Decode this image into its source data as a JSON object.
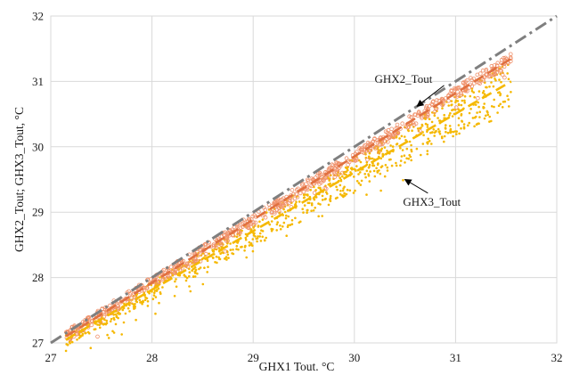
{
  "chart_data": {
    "type": "scatter",
    "xlabel": "GHX1  Tout. °C",
    "ylabel": "GHX2_Tout; GHX3_Tout, °C",
    "xlim": [
      27,
      32
    ],
    "ylim": [
      27,
      32
    ],
    "xticks": [
      "27",
      "28",
      "29",
      "30",
      "31",
      "32"
    ],
    "yticks": [
      "27",
      "28",
      "29",
      "30",
      "31",
      "32"
    ],
    "grid": true,
    "colors": {
      "ghx2": "#f0916b",
      "ghx3": "#f5b800",
      "reference": "#7f7f7f",
      "grid": "#d9d9d9"
    },
    "reference_line": {
      "x": [
        27,
        32
      ],
      "y": [
        27,
        32
      ]
    },
    "series": [
      {
        "key": "ghx2",
        "x_range": [
          27.15,
          31.55
        ],
        "trend": {
          "x": [
            27.15,
            31.55
          ],
          "y": [
            27.1,
            31.35
          ]
        }
      },
      {
        "key": "ghx3",
        "x_range": [
          27.15,
          31.55
        ],
        "trend": {
          "x": [
            27.15,
            31.55
          ],
          "y": [
            27.05,
            31.0
          ]
        }
      }
    ],
    "annotations": [
      {
        "text": "GHX2_Tout",
        "x": 30.2,
        "y": 30.98,
        "arrow_to": [
          30.62,
          30.62
        ],
        "series": "ghx2"
      },
      {
        "text": "GHX3_Tout",
        "x": 30.48,
        "y": 29.1,
        "arrow_to": [
          30.5,
          29.5
        ],
        "series": "ghx3"
      }
    ]
  }
}
